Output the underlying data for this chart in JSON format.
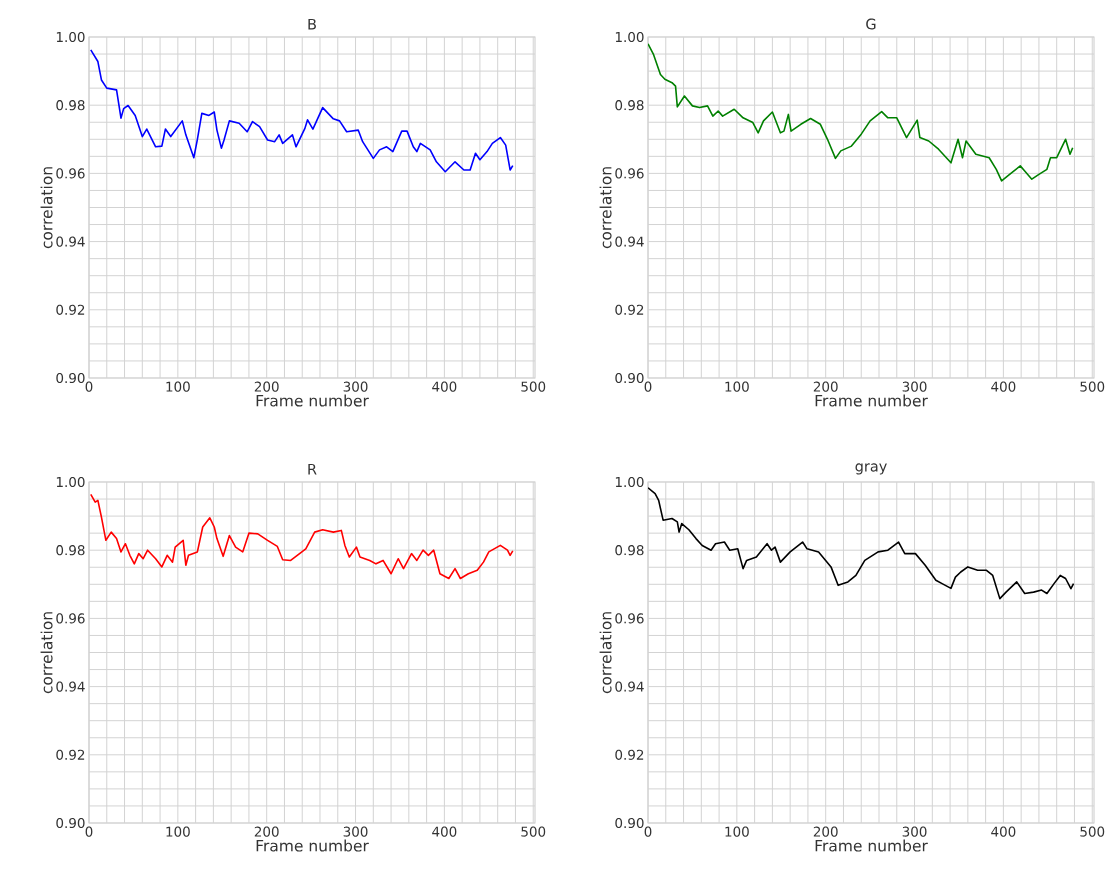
{
  "chart_data": [
    {
      "type": "line",
      "title": "B",
      "xlabel": "Frame number",
      "ylabel": "correlation",
      "grid": true,
      "xlim": [
        0,
        502
      ],
      "ylim": [
        0.9,
        1.0
      ],
      "xticks": [
        0,
        100,
        200,
        300,
        400,
        500
      ],
      "yticks": [
        {
          "value": 0.9,
          "label": "0.90"
        },
        {
          "value": 0.92,
          "label": "0.92"
        },
        {
          "value": 0.94,
          "label": "0.94"
        },
        {
          "value": 0.96,
          "label": "0.96"
        },
        {
          "value": 0.98,
          "label": "0.98"
        },
        {
          "value": 1.0,
          "label": "1.00"
        }
      ],
      "x": [
        2,
        10,
        14,
        20,
        31,
        36,
        39,
        44,
        52,
        60,
        65,
        75,
        82,
        86,
        92,
        105,
        109,
        118,
        122,
        127,
        135,
        141,
        144,
        149,
        152,
        158,
        169,
        178,
        184,
        192,
        201,
        209,
        214,
        218,
        229,
        233,
        243,
        246,
        252,
        263,
        275,
        282,
        290,
        303,
        308,
        320,
        327,
        335,
        342,
        352,
        358,
        365,
        369,
        373,
        384,
        391,
        401,
        412,
        422,
        429,
        435,
        440,
        448,
        454,
        463,
        469,
        474,
        477
      ],
      "series": [
        {
          "color": "#0000ff",
          "values": [
            0.9962,
            0.9928,
            0.9874,
            0.985,
            0.9845,
            0.9762,
            0.979,
            0.9799,
            0.977,
            0.9708,
            0.973,
            0.9678,
            0.968,
            0.973,
            0.9708,
            0.9754,
            0.9713,
            0.9646,
            0.97,
            0.9776,
            0.977,
            0.978,
            0.9727,
            0.9674,
            0.9698,
            0.9754,
            0.9747,
            0.9722,
            0.9752,
            0.9737,
            0.9698,
            0.9693,
            0.9713,
            0.9688,
            0.9713,
            0.9678,
            0.9732,
            0.9757,
            0.973,
            0.9793,
            0.976,
            0.9754,
            0.9722,
            0.9727,
            0.9693,
            0.9644,
            0.9669,
            0.9678,
            0.9664,
            0.9724,
            0.9724,
            0.9678,
            0.9664,
            0.9688,
            0.9669,
            0.9634,
            0.9605,
            0.9634,
            0.961,
            0.961,
            0.9659,
            0.964,
            0.9664,
            0.9688,
            0.9705,
            0.9683,
            0.961,
            0.9623
          ]
        }
      ]
    },
    {
      "type": "line",
      "title": "G",
      "xlabel": "Frame number",
      "ylabel": "correlation",
      "grid": true,
      "xlim": [
        0,
        502
      ],
      "ylim": [
        0.9,
        1.0
      ],
      "xticks": [
        0,
        100,
        200,
        300,
        400,
        500
      ],
      "yticks": [
        {
          "value": 0.9,
          "label": "0.90"
        },
        {
          "value": 0.92,
          "label": "0.92"
        },
        {
          "value": 0.94,
          "label": "0.94"
        },
        {
          "value": 0.96,
          "label": "0.96"
        },
        {
          "value": 0.98,
          "label": "0.98"
        },
        {
          "value": 1.0,
          "label": "1.00"
        }
      ],
      "x": [
        0,
        6,
        14,
        19,
        27,
        31,
        33,
        41,
        50,
        58,
        67,
        73,
        79,
        84,
        97,
        107,
        118,
        124,
        130,
        140,
        149,
        153,
        158,
        161,
        172,
        183,
        194,
        202,
        211,
        217,
        229,
        240,
        250,
        263,
        270,
        280,
        291,
        303,
        306,
        316,
        327,
        341,
        349,
        354,
        358,
        369,
        384,
        392,
        398,
        407,
        419,
        424,
        432,
        440,
        449,
        453,
        460,
        470,
        475,
        478
      ],
      "series": [
        {
          "color": "#008000",
          "values": [
            0.998,
            0.995,
            0.989,
            0.9876,
            0.9866,
            0.9856,
            0.9795,
            0.9827,
            0.9798,
            0.9793,
            0.9798,
            0.9768,
            0.9783,
            0.9768,
            0.9788,
            0.9763,
            0.9749,
            0.9719,
            0.9754,
            0.978,
            0.9719,
            0.9724,
            0.9773,
            0.9724,
            0.9744,
            0.9761,
            0.9744,
            0.97,
            0.9644,
            0.9666,
            0.968,
            0.9715,
            0.9754,
            0.9781,
            0.9763,
            0.9763,
            0.9705,
            0.9756,
            0.9705,
            0.9695,
            0.9671,
            0.9631,
            0.97,
            0.9646,
            0.9695,
            0.9656,
            0.9646,
            0.9612,
            0.9578,
            0.9597,
            0.9622,
            0.9607,
            0.9583,
            0.9597,
            0.9612,
            0.9646,
            0.9646,
            0.97,
            0.9656,
            0.9675
          ]
        }
      ]
    },
    {
      "type": "line",
      "title": "R",
      "xlabel": "Frame number",
      "ylabel": "correlation",
      "grid": true,
      "xlim": [
        0,
        502
      ],
      "ylim": [
        0.9,
        1.0
      ],
      "xticks": [
        0,
        100,
        200,
        300,
        400,
        500
      ],
      "yticks": [
        {
          "value": 0.9,
          "label": "0.90"
        },
        {
          "value": 0.92,
          "label": "0.92"
        },
        {
          "value": 0.94,
          "label": "0.94"
        },
        {
          "value": 0.96,
          "label": "0.96"
        },
        {
          "value": 0.98,
          "label": "0.98"
        },
        {
          "value": 1.0,
          "label": "1.00"
        }
      ],
      "x": [
        2,
        7,
        10,
        14,
        19,
        25,
        31,
        36,
        41,
        46,
        51,
        56,
        61,
        66,
        75,
        82,
        88,
        94,
        97,
        106,
        109,
        112,
        122,
        128,
        136,
        141,
        144,
        151,
        158,
        165,
        173,
        180,
        190,
        201,
        212,
        218,
        227,
        237,
        244,
        254,
        263,
        275,
        284,
        288,
        293,
        301,
        305,
        316,
        323,
        331,
        340,
        348,
        354,
        363,
        369,
        376,
        382,
        388,
        395,
        405,
        412,
        418,
        427,
        437,
        444,
        450,
        463,
        471,
        474,
        477
      ],
      "series": [
        {
          "color": "#ff0000",
          "values": [
            0.9964,
            0.9941,
            0.9946,
            0.9897,
            0.9829,
            0.9853,
            0.9834,
            0.9795,
            0.9819,
            0.9785,
            0.976,
            0.979,
            0.9775,
            0.98,
            0.9775,
            0.9751,
            0.9785,
            0.9765,
            0.9809,
            0.9829,
            0.9756,
            0.9785,
            0.9795,
            0.9868,
            0.9895,
            0.9868,
            0.9834,
            0.9782,
            0.9843,
            0.9809,
            0.9795,
            0.985,
            0.9848,
            0.9829,
            0.9811,
            0.9772,
            0.977,
            0.979,
            0.9804,
            0.9853,
            0.986,
            0.9853,
            0.9858,
            0.9814,
            0.978,
            0.9809,
            0.978,
            0.977,
            0.976,
            0.977,
            0.9731,
            0.9775,
            0.9746,
            0.979,
            0.977,
            0.98,
            0.9785,
            0.98,
            0.9731,
            0.9717,
            0.9746,
            0.9717,
            0.9731,
            0.9741,
            0.9765,
            0.9795,
            0.9814,
            0.98,
            0.9785,
            0.9798
          ]
        }
      ]
    },
    {
      "type": "line",
      "title": "gray",
      "xlabel": "Frame number",
      "ylabel": "correlation",
      "grid": true,
      "xlim": [
        0,
        502
      ],
      "ylim": [
        0.9,
        1.0
      ],
      "xticks": [
        0,
        100,
        200,
        300,
        400,
        500
      ],
      "yticks": [
        {
          "value": 0.9,
          "label": "0.90"
        },
        {
          "value": 0.92,
          "label": "0.92"
        },
        {
          "value": 0.94,
          "label": "0.94"
        },
        {
          "value": 0.96,
          "label": "0.96"
        },
        {
          "value": 0.98,
          "label": "0.98"
        },
        {
          "value": 1.0,
          "label": "1.00"
        }
      ],
      "x": [
        0,
        8,
        12,
        17,
        27,
        33,
        35,
        38,
        46,
        54,
        61,
        71,
        76,
        86,
        92,
        101,
        107,
        111,
        122,
        134,
        139,
        143,
        149,
        160,
        174,
        179,
        192,
        206,
        214,
        225,
        234,
        244,
        259,
        270,
        282,
        289,
        301,
        312,
        324,
        331,
        341,
        346,
        352,
        360,
        371,
        381,
        388,
        396,
        403,
        415,
        424,
        434,
        443,
        449,
        457,
        464,
        470,
        476,
        479
      ],
      "series": [
        {
          "color": "#000000",
          "values": [
            0.9983,
            0.9966,
            0.9946,
            0.9888,
            0.9893,
            0.9883,
            0.9853,
            0.9878,
            0.986,
            0.9834,
            0.9814,
            0.98,
            0.9819,
            0.9824,
            0.98,
            0.9804,
            0.9746,
            0.977,
            0.978,
            0.9819,
            0.98,
            0.9809,
            0.9765,
            0.9795,
            0.9824,
            0.9804,
            0.9795,
            0.9751,
            0.9697,
            0.9707,
            0.9726,
            0.977,
            0.9795,
            0.98,
            0.9824,
            0.979,
            0.979,
            0.9756,
            0.9712,
            0.9702,
            0.9688,
            0.9721,
            0.9736,
            0.9751,
            0.9741,
            0.9741,
            0.9726,
            0.9658,
            0.9677,
            0.9707,
            0.9673,
            0.9677,
            0.9683,
            0.9673,
            0.9702,
            0.9726,
            0.9717,
            0.9687,
            0.9702
          ]
        }
      ]
    }
  ]
}
